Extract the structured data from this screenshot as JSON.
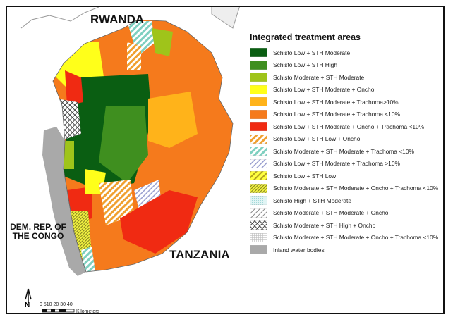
{
  "labels": {
    "rwanda": "RWANDA",
    "drc": "DEM. REP. OF THE CONGO",
    "tanzania": "TANZANIA"
  },
  "legend": {
    "title": "Integrated treatment areas",
    "items": [
      {
        "label": "Schisto Low + STH Moderate",
        "color": "#0a5e12",
        "pattern": "solid"
      },
      {
        "label": "Schisto Low + STH High",
        "color": "#3f8f1f",
        "pattern": "solid"
      },
      {
        "label": "Schisto Moderate + STH Moderate",
        "color": "#9fc41a",
        "pattern": "solid"
      },
      {
        "label": "Schisto Low + STH Moderate + Oncho",
        "color": "#ffff1a",
        "pattern": "solid"
      },
      {
        "label": "Schisto Low + STH Moderate + Trachoma>10%",
        "color": "#ffb31a",
        "pattern": "solid"
      },
      {
        "label": "Schisto Low + STH Moderate + Trachoma <10%",
        "color": "#f57a1c",
        "pattern": "solid"
      },
      {
        "label": "Schisto Low + STH Moderate + Oncho + Trachoma <10%",
        "color": "#f02a12",
        "pattern": "solid"
      },
      {
        "label": "Schisto Low + STH Low + Oncho",
        "color": "#f0a030",
        "pattern": "hatch-orange"
      },
      {
        "label": "Schisto Moderate + STH Moderate + Trachoma <10%",
        "color": "#7fd0c0",
        "pattern": "hatch-teal"
      },
      {
        "label": "Schisto Low + STH Moderate + Trachoma >10%",
        "color": "#9aa0d0",
        "pattern": "hatch-lilac"
      },
      {
        "label": "Schisto Low + STH Low",
        "color": "#e8d020",
        "pattern": "hatch-yellow"
      },
      {
        "label": "Schisto Moderate + STH Moderate + Oncho + Trachoma <10%",
        "color": "#d8d830",
        "pattern": "dense-yellow"
      },
      {
        "label": "Schisto High + STH Moderate",
        "color": "#d8f0f0",
        "pattern": "dots-cyan"
      },
      {
        "label": "Schisto Moderate + STH Moderate + Oncho",
        "color": "#999999",
        "pattern": "hatch-gray"
      },
      {
        "label": "Schisto Moderate + STH High + Oncho",
        "color": "#555555",
        "pattern": "cross"
      },
      {
        "label": "Schisto Moderate + STH Moderate + Oncho + Trachoma <10%",
        "color": "#bbbbbb",
        "pattern": "grid"
      },
      {
        "label": "Inland water bodies",
        "color": "#a9a9a9",
        "pattern": "solid"
      }
    ]
  },
  "scale": {
    "ticks": "0 510 20 30 40",
    "unit": "Kilometers"
  },
  "north": "N"
}
